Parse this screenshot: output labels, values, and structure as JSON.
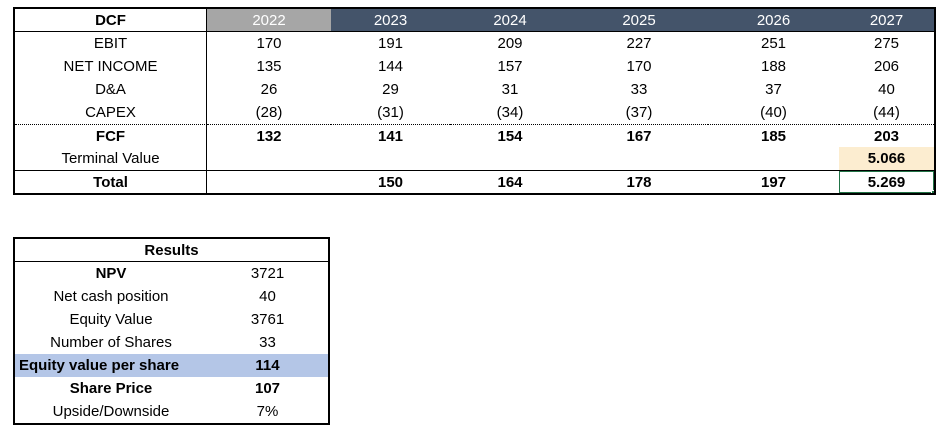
{
  "dcf_table": {
    "title": "DCF",
    "years": [
      "2022",
      "2023",
      "2024",
      "2025",
      "2026",
      "2027"
    ],
    "rows": [
      {
        "label": "EBIT",
        "values": [
          "170",
          "191",
          "209",
          "227",
          "251",
          "275"
        ]
      },
      {
        "label": "NET INCOME",
        "values": [
          "135",
          "144",
          "157",
          "170",
          "188",
          "206"
        ]
      },
      {
        "label": "D&A",
        "values": [
          "26",
          "29",
          "31",
          "33",
          "37",
          "40"
        ]
      },
      {
        "label": "CAPEX",
        "values": [
          "(28)",
          "(31)",
          "(34)",
          "(37)",
          "(40)",
          "(44)"
        ]
      },
      {
        "label": "FCF",
        "values": [
          "132",
          "141",
          "154",
          "167",
          "185",
          "203"
        ]
      },
      {
        "label": "Terminal Value",
        "values": [
          "",
          "",
          "",
          "",
          "",
          "5.066"
        ]
      },
      {
        "label": "Total",
        "values": [
          "",
          "150",
          "164",
          "178",
          "197",
          "5.269"
        ]
      }
    ]
  },
  "results_table": {
    "title": "Results",
    "rows": [
      {
        "label": "NPV",
        "value": "3721"
      },
      {
        "label": "Net cash position",
        "value": "40"
      },
      {
        "label": "Equity Value",
        "value": "3761"
      },
      {
        "label": "Number of Shares",
        "value": "33"
      },
      {
        "label": "Equity value per share",
        "value": "114"
      },
      {
        "label": "Share Price",
        "value": "107"
      },
      {
        "label": "Upside/Downside",
        "value": "7%"
      }
    ]
  },
  "colors": {
    "header_dark": "#44546A",
    "header_gray": "#A6A6A6",
    "terminal_fill": "#FCEDD0",
    "highlight_fill": "#B4C6E7",
    "sel_green": "#217346"
  }
}
